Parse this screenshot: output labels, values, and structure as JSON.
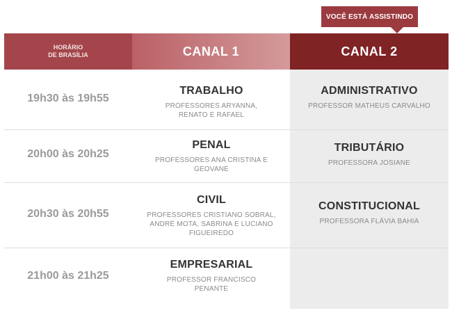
{
  "badge": {
    "label": "VOCÊ ESTÁ ASSISTINDO"
  },
  "header": {
    "time_line1": "HORÁRIO",
    "time_line2": "DE BRASÍLIA",
    "canal1": "CANAL 1",
    "canal2": "CANAL 2"
  },
  "rows": [
    {
      "time": "19h30 às 19h55",
      "c1_title": "TRABALHO",
      "c1_sub": "PROFESSORES ARYANNA, RENATO E RAFAEL",
      "c2_title": "ADMINISTRATIVO",
      "c2_sub": "PROFESSOR MATHEUS CARVALHO"
    },
    {
      "time": "20h00 às 20h25",
      "c1_title": "PENAL",
      "c1_sub": "PROFESSORES ANA CRISTINA E GEOVANE",
      "c2_title": "TRIBUTÁRIO",
      "c2_sub": "PROFESSORA JOSIANE"
    },
    {
      "time": "20h30 às 20h55",
      "c1_title": "CIVIL",
      "c1_sub": "PROFESSORES CRISTIANO SOBRAL, ANDRÉ MOTA, SABRINA E LUCIANO FIGUEIREDO",
      "c2_title": "CONSTITUCIONAL",
      "c2_sub": "PROFESSORA FLÁVIA BAHIA"
    },
    {
      "time": "21h00 às 21h25",
      "c1_title": "EMPRESARIAL",
      "c1_sub": "PROFESSOR FRANCISCO PENANTE",
      "c2_title": "",
      "c2_sub": ""
    }
  ],
  "colors": {
    "accent_dark": "#7f2324",
    "accent": "#a3454a",
    "badge": "#9b3b3f"
  }
}
